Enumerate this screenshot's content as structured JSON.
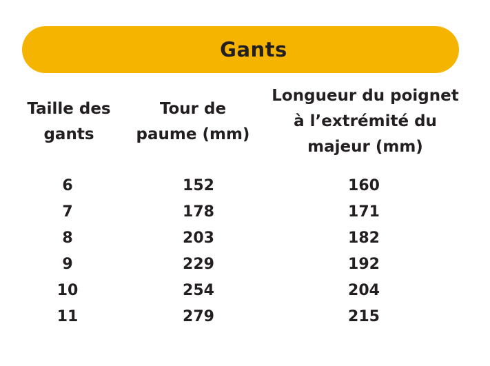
{
  "banner": {
    "title": "Gants",
    "color": "#f5b400"
  },
  "table": {
    "headers": {
      "size": "Taille des\ngants",
      "palm": "Tour de\npaume (mm)",
      "length": "Longueur du poignet\nà l’extrémité du\nmajeur (mm)"
    },
    "rows": [
      {
        "size": "6",
        "palm": "152",
        "length": "160"
      },
      {
        "size": "7",
        "palm": "178",
        "length": "171"
      },
      {
        "size": "8",
        "palm": "203",
        "length": "182"
      },
      {
        "size": "9",
        "palm": "229",
        "length": "192"
      },
      {
        "size": "10",
        "palm": "254",
        "length": "204"
      },
      {
        "size": "11",
        "palm": "279",
        "length": "215"
      }
    ]
  }
}
